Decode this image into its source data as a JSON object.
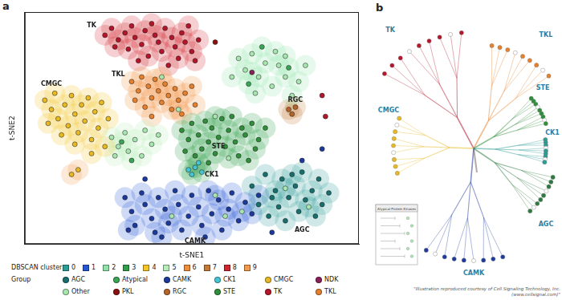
{
  "chart_data": {
    "type": "scatter",
    "panel_label": "a",
    "x_label": "t-SNE1",
    "y_label": "t-SNE2",
    "xlim": [
      -50,
      50
    ],
    "ylim": [
      -50,
      50
    ],
    "tick_labels": false,
    "grid": false,
    "marker": "circle",
    "legend": "bottom",
    "clusters": {
      "title": "DBSCAN cluster",
      "items": [
        {
          "name": "0",
          "color": "#2a9d96"
        },
        {
          "name": "1",
          "color": "#2457d6"
        },
        {
          "name": "2",
          "color": "#8fe3a9"
        },
        {
          "name": "3",
          "color": "#2fa04a"
        },
        {
          "name": "4",
          "color": "#f3c623"
        },
        {
          "name": "5",
          "color": "#b5ecb8"
        },
        {
          "name": "6",
          "color": "#f08c3a"
        },
        {
          "name": "7",
          "color": "#c47a35"
        },
        {
          "name": "8",
          "color": "#d0262f"
        },
        {
          "name": "9",
          "color": "#f39a4c"
        }
      ]
    },
    "series_title": "Group",
    "series": [
      {
        "name": "AGC",
        "color": "#17706e",
        "x": [
          18,
          20,
          22,
          23,
          25,
          26,
          27,
          28,
          29,
          31,
          32,
          33,
          34,
          36,
          37,
          38,
          39,
          41,
          24,
          30
        ],
        "y": [
          -25,
          -33,
          -20,
          -38,
          -27,
          -34,
          -22,
          -40,
          -30,
          -25,
          -36,
          -19,
          -31,
          -27,
          -38,
          -22,
          -33,
          -28,
          -30,
          -20
        ],
        "cluster": [
          "0",
          "0",
          "0",
          "0",
          "0",
          "0",
          "0",
          "0",
          "0",
          "0",
          "0",
          "0",
          "0",
          "0",
          "0",
          "0",
          "0",
          "0",
          "0",
          "0"
        ]
      },
      {
        "name": "Atypical",
        "color": "#3aa655",
        "x": [
          21,
          29,
          17,
          -18,
          -21
        ],
        "y": [
          35,
          26,
          19,
          -14,
          -6
        ],
        "cluster": [
          "2",
          "2",
          "2",
          "5",
          "5"
        ]
      },
      {
        "name": "CAMK",
        "color": "#1b3a9c",
        "x": [
          -20,
          -18,
          -17,
          -15,
          -14,
          -12,
          -11,
          -10,
          -8,
          -7,
          -5,
          -4,
          -3,
          -1,
          0,
          2,
          3,
          5,
          6,
          8,
          9,
          11,
          12,
          14,
          16,
          18,
          20,
          -9,
          4,
          -19,
          33,
          39,
          24,
          -14
        ],
        "y": [
          -30,
          -36,
          -42,
          -28,
          -33,
          -39,
          -45,
          -30,
          -35,
          -41,
          -27,
          -33,
          -44,
          -38,
          -29,
          -34,
          -42,
          -27,
          -37,
          -31,
          -44,
          -35,
          -28,
          -40,
          -32,
          -37,
          -29,
          -47,
          -47,
          -44,
          -14,
          -9,
          -45,
          -22
        ],
        "cluster": [
          "1",
          "1",
          "1",
          "1",
          "1",
          "1",
          "1",
          "1",
          "1",
          "1",
          "1",
          "1",
          "1",
          "1",
          "1",
          "1",
          "1",
          "1",
          "1",
          "1",
          "1",
          "1",
          "1",
          "1",
          "1",
          "1",
          "1",
          "1",
          "1",
          "1",
          null,
          null,
          null,
          null
        ]
      },
      {
        "name": "CK1",
        "color": "#45c6d4",
        "x": [
          -1,
          1,
          3,
          2,
          0
        ],
        "y": [
          -18,
          -17,
          -19,
          -15,
          -20
        ],
        "cluster": [
          "3",
          "3",
          "3",
          "3",
          "3"
        ]
      },
      {
        "name": "CMGC",
        "color": "#e8b923",
        "x": [
          -44,
          -42,
          -41,
          -40,
          -38,
          -37,
          -36,
          -35,
          -34,
          -33,
          -32,
          -31,
          -30,
          -29,
          -28,
          -27,
          -26,
          -39,
          -43,
          -25,
          -30,
          -35,
          -36,
          -34
        ],
        "y": [
          12,
          8,
          15,
          4,
          10,
          1,
          14,
          6,
          -2,
          10,
          3,
          13,
          -5,
          7,
          0,
          11,
          -8,
          -3,
          2,
          4,
          -11,
          -7,
          -20,
          -18
        ],
        "cluster": [
          "4",
          "4",
          "4",
          "4",
          "4",
          "4",
          "4",
          "4",
          "4",
          "4",
          "4",
          "4",
          "4",
          "4",
          "4",
          "4",
          "4",
          "4",
          "4",
          "4",
          "4",
          "4",
          "9",
          "9"
        ]
      },
      {
        "name": "NDK",
        "color": "#8a1f5c",
        "x": [
          18
        ],
        "y": [
          24
        ],
        "cluster": [
          "2"
        ]
      },
      {
        "name": "Other",
        "color": "#a8e6b0",
        "x": [
          -24,
          -22,
          -20,
          -19,
          -17,
          -15,
          -14,
          -12,
          -23,
          -10,
          14,
          16,
          18,
          20,
          22,
          24,
          26,
          28,
          30,
          25,
          19,
          32,
          34,
          12,
          28,
          10,
          15,
          -6,
          7,
          35,
          28,
          -9,
          -4,
          11,
          7
        ],
        "y": [
          -4,
          -8,
          -2,
          -10,
          -5,
          -12,
          -1,
          -7,
          -12,
          -3,
          30,
          25,
          32,
          22,
          28,
          18,
          27,
          22,
          14,
          33,
          15,
          20,
          27,
          22,
          31,
          -38,
          -36,
          -38,
          -29,
          -34,
          -26,
          22,
          8,
          -13,
          5
        ],
        "cluster": [
          "5",
          "5",
          "5",
          "5",
          "5",
          "5",
          "5",
          "5",
          "5",
          "5",
          "2",
          "2",
          "2",
          "2",
          "2",
          "2",
          "2",
          "2",
          "2",
          "2",
          "2",
          "2",
          "2",
          "2",
          "2",
          "1",
          "1",
          "1",
          "1",
          "0",
          "0",
          "6",
          "6",
          "3",
          "3"
        ]
      },
      {
        "name": "PKL",
        "color": "#8b1010",
        "x": [
          7
        ],
        "y": [
          37
        ],
        "cluster": [
          null
        ]
      },
      {
        "name": "RGC",
        "color": "#b5652a",
        "x": [
          29,
          31,
          30
        ],
        "y": [
          8,
          9,
          6
        ],
        "cluster": [
          "7",
          "7",
          "7"
        ]
      },
      {
        "name": "STE",
        "color": "#2f8f3a",
        "x": [
          -3,
          -1,
          0,
          2,
          3,
          4,
          5,
          6,
          7,
          8,
          9,
          10,
          11,
          12,
          13,
          14,
          15,
          16,
          18,
          19,
          20,
          1,
          -2,
          5,
          17,
          22
        ],
        "y": [
          -1,
          -5,
          2,
          -3,
          -9,
          3,
          -6,
          0,
          -11,
          -4,
          4,
          -8,
          -1,
          5,
          -6,
          -12,
          0,
          -3,
          2,
          -9,
          -5,
          -12,
          -10,
          -15,
          -14,
          0
        ],
        "cluster": [
          "3",
          "3",
          "3",
          "3",
          "3",
          "3",
          "3",
          "3",
          "3",
          "3",
          "3",
          "3",
          "3",
          "3",
          "3",
          "3",
          "3",
          "3",
          "3",
          "3",
          "3",
          "3",
          "3",
          "3",
          "3",
          "3"
        ]
      },
      {
        "name": "TK",
        "color": "#b3162a",
        "x": [
          -26,
          -24,
          -22,
          -20,
          -18,
          -17,
          -15,
          -14,
          -12,
          -11,
          -10,
          -9,
          -8,
          -6,
          -5,
          -4,
          -3,
          -2,
          0,
          1,
          -13,
          -16,
          -7,
          2,
          -19,
          -1,
          -23,
          39,
          40
        ],
        "y": [
          40,
          43,
          38,
          41,
          44,
          39,
          36,
          42,
          45,
          40,
          37,
          33,
          43,
          39,
          35,
          30,
          41,
          37,
          33,
          29,
          31,
          29,
          27,
          38,
          34,
          44,
          35,
          14,
          5
        ],
        "cluster": [
          "8",
          "8",
          "8",
          "8",
          "8",
          "8",
          "8",
          "8",
          "8",
          "8",
          "8",
          "8",
          "8",
          "8",
          "8",
          "8",
          "8",
          "8",
          "8",
          "8",
          "8",
          "8",
          "8",
          "8",
          "8",
          "8",
          "8",
          null,
          null
        ]
      },
      {
        "name": "TKL",
        "color": "#e5802e",
        "x": [
          -18,
          -16,
          -15,
          -13,
          -12,
          -11,
          -10,
          -9,
          -8,
          -7,
          -6,
          -5,
          -4,
          -3,
          -2,
          -14,
          -17,
          1,
          0,
          -12
        ],
        "y": [
          20,
          16,
          22,
          18,
          13,
          21,
          16,
          11,
          19,
          14,
          8,
          17,
          12,
          6,
          15,
          9,
          12,
          10,
          18,
          5
        ],
        "cluster": [
          "6",
          "6",
          "6",
          "6",
          "6",
          "6",
          "6",
          "6",
          "6",
          "6",
          "6",
          "6",
          "6",
          "6",
          "6",
          "6",
          "6",
          "6",
          "6",
          "6"
        ]
      }
    ],
    "annotations": [
      {
        "text": "TK",
        "x": -30,
        "y": 44
      },
      {
        "text": "TKL",
        "x": -22,
        "y": 23
      },
      {
        "text": "CMGC",
        "x": -42,
        "y": 19
      },
      {
        "text": "STE",
        "x": 8,
        "y": -8
      },
      {
        "text": "RGC",
        "x": 31,
        "y": 12
      },
      {
        "text": "CK1",
        "x": 6,
        "y": -20
      },
      {
        "text": "AGC",
        "x": 33,
        "y": -44
      },
      {
        "text": "CAMK",
        "x": 1,
        "y": -49
      }
    ]
  },
  "panel_b": {
    "panel_label": "b",
    "groups": [
      {
        "name": "TK",
        "color": "#b3162a"
      },
      {
        "name": "TKL",
        "color": "#e5802e"
      },
      {
        "name": "STE",
        "color": "#2f8f3a"
      },
      {
        "name": "CK1",
        "color": "#2a9d96"
      },
      {
        "name": "AGC",
        "color": "#2c7a3f"
      },
      {
        "name": "CAMK",
        "color": "#1b3a9c"
      },
      {
        "name": "CMGC",
        "color": "#e8b923"
      }
    ],
    "inset_title": "Atypical Protein Kinases",
    "credit": "\"Illustration reproduced courtesy of Cell Signaling Technology, Inc. (www.cellsignal.com)\""
  }
}
